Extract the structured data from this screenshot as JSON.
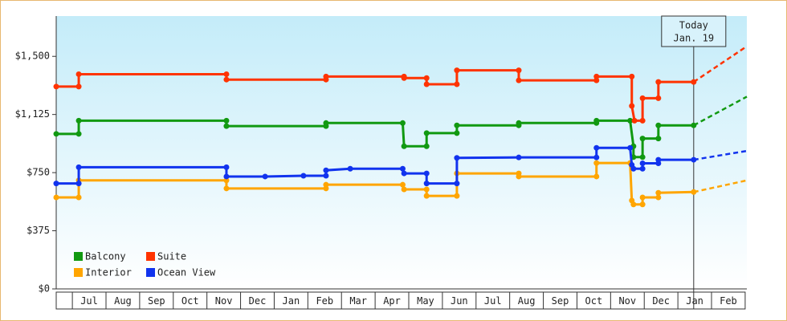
{
  "chart_data": {
    "type": "line",
    "step": true,
    "xlim": [
      -0.48,
      20.05
    ],
    "ylim": [
      0,
      1760
    ],
    "yticks": [
      {
        "value": 0,
        "label": "$0"
      },
      {
        "value": 375,
        "label": "$375"
      },
      {
        "value": 750,
        "label": "$750"
      },
      {
        "value": 1125,
        "label": "$1,125"
      },
      {
        "value": 1500,
        "label": "$1,500"
      }
    ],
    "xticks": [
      {
        "value": 0.5,
        "label": "Jul"
      },
      {
        "value": 1.5,
        "label": "Aug"
      },
      {
        "value": 2.5,
        "label": "Sep"
      },
      {
        "value": 3.5,
        "label": "Oct"
      },
      {
        "value": 4.5,
        "label": "Nov"
      },
      {
        "value": 5.5,
        "label": "Dec"
      },
      {
        "value": 6.5,
        "label": "Jan"
      },
      {
        "value": 7.5,
        "label": "Feb"
      },
      {
        "value": 8.5,
        "label": "Mar"
      },
      {
        "value": 9.5,
        "label": "Apr"
      },
      {
        "value": 10.5,
        "label": "May"
      },
      {
        "value": 11.5,
        "label": "Jun"
      },
      {
        "value": 12.5,
        "label": "Jul"
      },
      {
        "value": 13.5,
        "label": "Aug"
      },
      {
        "value": 14.5,
        "label": "Sep"
      },
      {
        "value": 15.5,
        "label": "Oct"
      },
      {
        "value": 16.5,
        "label": "Nov"
      },
      {
        "value": 17.5,
        "label": "Dec"
      },
      {
        "value": 18.5,
        "label": "Jan"
      },
      {
        "value": 19.5,
        "label": "Feb"
      }
    ],
    "legend": "lower left",
    "today": {
      "x": 18.47,
      "label": [
        "Today",
        "Jan. 19"
      ]
    },
    "series": [
      {
        "name": "Balcony",
        "color": "#119911",
        "x": [
          -0.48,
          0.19,
          0.19,
          4.58,
          4.58,
          7.54,
          7.54,
          9.82,
          9.86,
          10.53,
          10.53,
          11.43,
          11.43,
          13.27,
          13.27,
          15.58,
          15.58,
          16.58,
          16.68,
          16.68,
          16.95,
          16.95,
          17.42,
          17.42,
          18.47
        ],
        "values": [
          1000,
          1000,
          1085,
          1085,
          1050,
          1050,
          1070,
          1070,
          920,
          920,
          1005,
          1005,
          1055,
          1055,
          1070,
          1070,
          1085,
          1085,
          920,
          850,
          850,
          970,
          970,
          1055,
          1055
        ],
        "projection": {
          "x": [
            18.47,
            20.05
          ],
          "values": [
            1055,
            1240
          ]
        }
      },
      {
        "name": "Suite",
        "color": "#ff3300",
        "x": [
          -0.48,
          0.19,
          0.19,
          4.58,
          4.58,
          7.54,
          7.54,
          9.86,
          9.86,
          10.53,
          10.53,
          11.43,
          11.43,
          13.27,
          13.27,
          15.58,
          15.58,
          16.63,
          16.63,
          16.71,
          16.95,
          16.95,
          17.42,
          17.42,
          18.47
        ],
        "values": [
          1305,
          1305,
          1385,
          1385,
          1350,
          1350,
          1370,
          1370,
          1360,
          1360,
          1320,
          1320,
          1410,
          1410,
          1345,
          1345,
          1370,
          1370,
          1180,
          1085,
          1085,
          1230,
          1230,
          1335,
          1335
        ],
        "projection": {
          "x": [
            18.47,
            20.05
          ],
          "values": [
            1335,
            1565
          ]
        }
      },
      {
        "name": "Interior",
        "color": "#ffa500",
        "x": [
          -0.48,
          0.19,
          0.19,
          4.58,
          4.58,
          7.54,
          7.54,
          9.82,
          9.86,
          10.53,
          10.53,
          11.43,
          11.43,
          13.27,
          13.27,
          15.58,
          15.58,
          16.58,
          16.63,
          16.68,
          16.95,
          16.95,
          17.42,
          17.42,
          18.47
        ],
        "values": [
          590,
          590,
          700,
          700,
          648,
          648,
          672,
          672,
          642,
          642,
          600,
          600,
          745,
          745,
          725,
          725,
          812,
          812,
          570,
          545,
          545,
          590,
          590,
          620,
          625
        ],
        "projection": {
          "x": [
            18.47,
            20.05
          ],
          "values": [
            625,
            700
          ]
        }
      },
      {
        "name": "Ocean View",
        "color": "#1133ee",
        "x": [
          -0.48,
          0.19,
          0.19,
          4.58,
          4.58,
          5.73,
          6.87,
          7.54,
          7.54,
          8.26,
          9.82,
          9.86,
          10.53,
          10.53,
          11.43,
          11.43,
          13.27,
          15.58,
          15.58,
          16.58,
          16.63,
          16.68,
          16.95,
          16.95,
          17.42,
          17.42,
          18.47
        ],
        "values": [
          680,
          680,
          785,
          785,
          725,
          725,
          730,
          730,
          765,
          775,
          775,
          745,
          745,
          680,
          680,
          845,
          848,
          848,
          910,
          910,
          800,
          775,
          775,
          810,
          810,
          833,
          833
        ],
        "projection": {
          "x": [
            18.47,
            20.05
          ],
          "values": [
            833,
            890
          ]
        }
      }
    ]
  }
}
